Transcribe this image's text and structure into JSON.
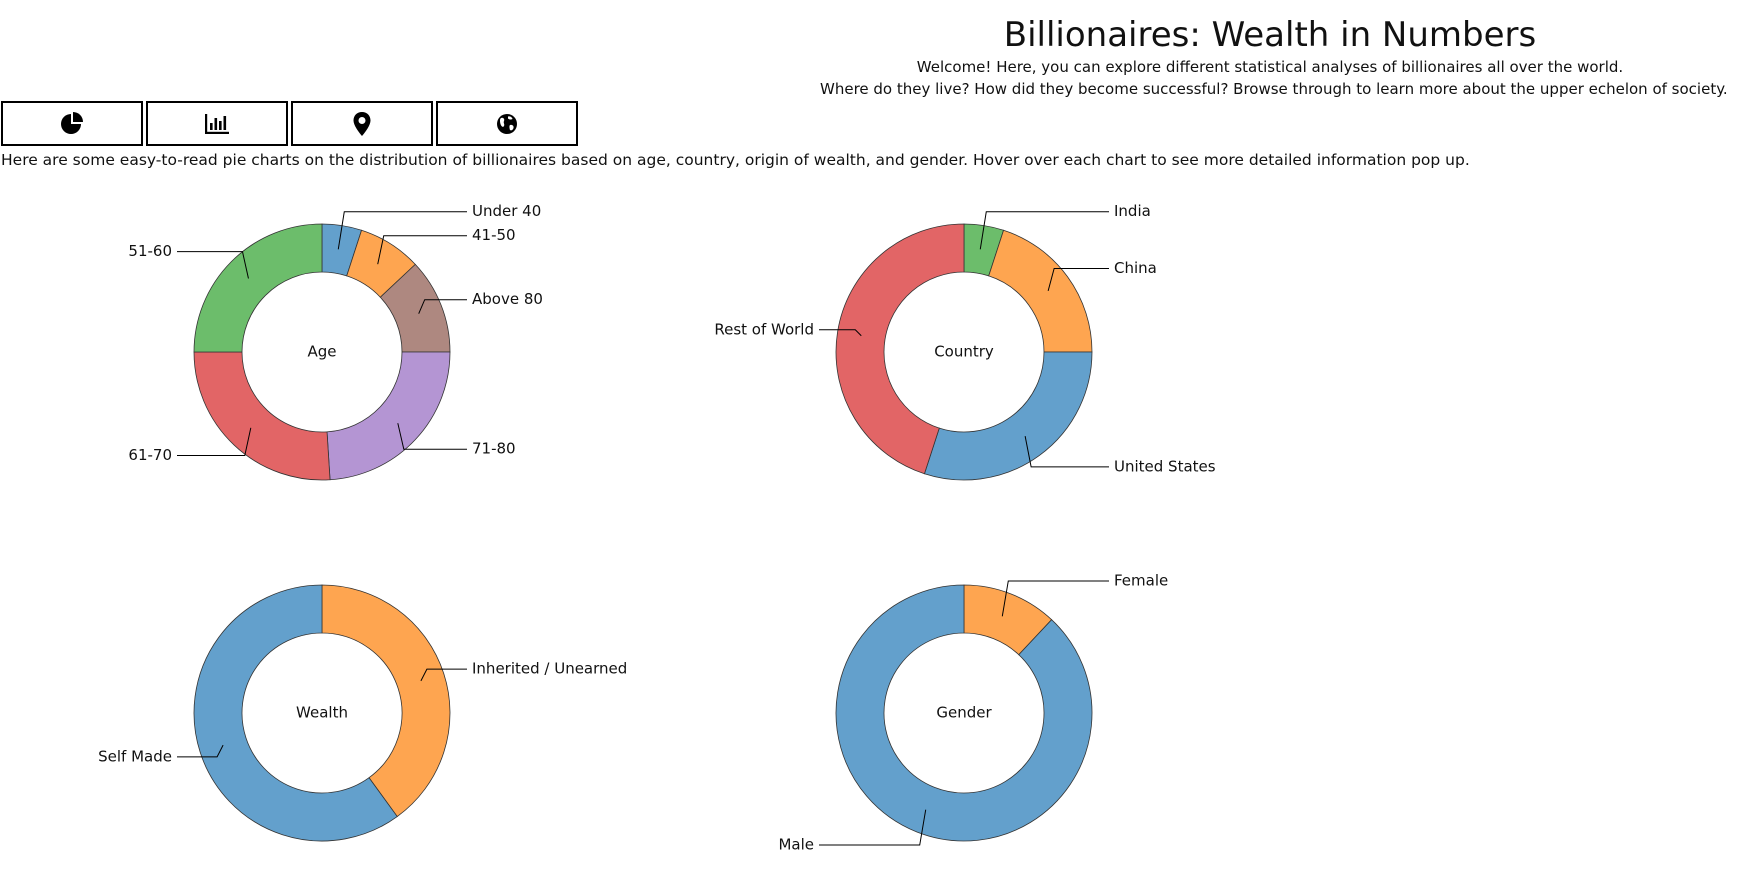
{
  "header": {
    "title": "Billionaires: Wealth in Numbers",
    "intro_line_1": "Welcome! Here, you can explore different statistical analyses of billionaires all over the world.",
    "intro_line_2": "Where do they live? How did they become successful? Browse through to learn more about the upper echelon of society."
  },
  "tabs": [
    {
      "icon": "pie-chart-icon",
      "active": true
    },
    {
      "icon": "bar-chart-icon",
      "active": false
    },
    {
      "icon": "map-pin-icon",
      "active": false
    },
    {
      "icon": "globe-icon",
      "active": false
    }
  ],
  "colors": {
    "active_tab": "#ff0000",
    "blue": "#63a0cc",
    "orange": "#fea550",
    "green": "#6cbd6b",
    "red": "#e26566",
    "purple": "#b495d3",
    "brown": "#ae8880"
  },
  "description": "Here are some easy-to-read pie charts on the distribution of billionaires based on age, country, origin of wealth, and gender. Hover over each chart to see more detailed information pop up.",
  "chart_data": [
    {
      "type": "pie",
      "center_label": "Age",
      "slices": [
        {
          "label": "Under 40",
          "value": 5,
          "color": "#63a0cc"
        },
        {
          "label": "41-50",
          "value": 8,
          "color": "#fea550"
        },
        {
          "label": "Above 80",
          "value": 12,
          "color": "#ae8880"
        },
        {
          "label": "71-80",
          "value": 24,
          "color": "#b495d3"
        },
        {
          "label": "61-70",
          "value": 26,
          "color": "#e26566"
        },
        {
          "label": "51-60",
          "value": 25,
          "color": "#6cbd6b"
        }
      ]
    },
    {
      "type": "pie",
      "center_label": "Country",
      "slices": [
        {
          "label": "India",
          "value": 5,
          "color": "#6cbd6b"
        },
        {
          "label": "China",
          "value": 20,
          "color": "#fea550"
        },
        {
          "label": "United States",
          "value": 30,
          "color": "#63a0cc"
        },
        {
          "label": "Rest of World",
          "value": 45,
          "color": "#e26566"
        }
      ]
    },
    {
      "type": "pie",
      "center_label": "Wealth",
      "slices": [
        {
          "label": "Inherited / Unearned",
          "value": 40,
          "color": "#fea550"
        },
        {
          "label": "Self Made",
          "value": 60,
          "color": "#63a0cc"
        }
      ]
    },
    {
      "type": "pie",
      "center_label": "Gender",
      "slices": [
        {
          "label": "Female",
          "value": 12,
          "color": "#fea550"
        },
        {
          "label": "Male",
          "value": 88,
          "color": "#63a0cc"
        }
      ]
    }
  ]
}
